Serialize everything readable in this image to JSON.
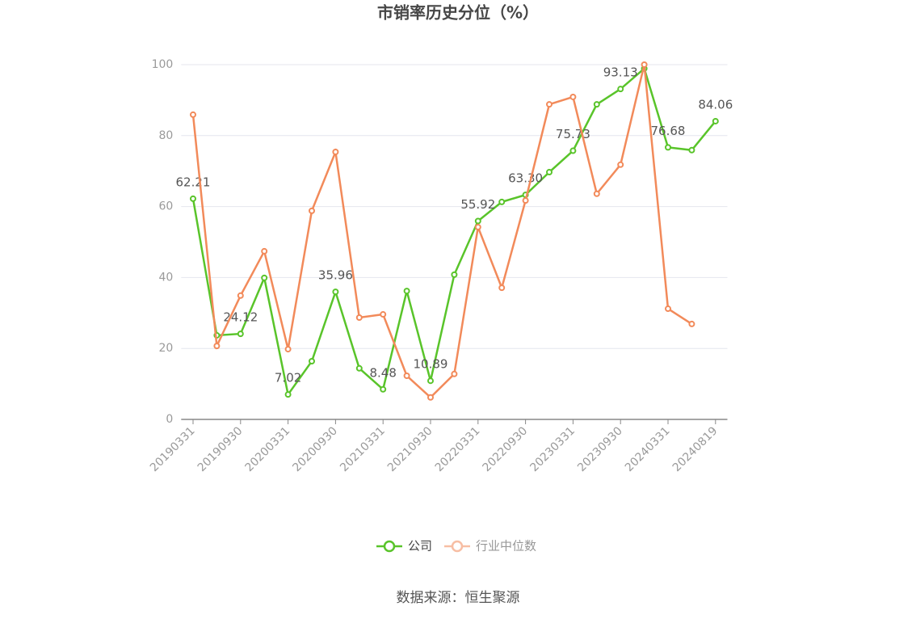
{
  "chart_data": {
    "type": "line",
    "title": "市销率历史分位（%）",
    "source": "数据来源：恒生聚源",
    "categories": [
      "20190331",
      null,
      "20190930",
      null,
      "20200331",
      null,
      "20200930",
      null,
      "20210331",
      null,
      "20210930",
      null,
      "20220331",
      null,
      "20220930",
      null,
      "20230331",
      null,
      "20230930",
      null,
      "20240331",
      null,
      "20240819"
    ],
    "series": [
      {
        "name": "公司",
        "color": "#59c42a",
        "values": [
          62.21,
          23.7,
          24.12,
          39.9,
          7.02,
          16.4,
          35.96,
          14.4,
          8.48,
          36.2,
          10.89,
          40.8,
          55.92,
          61.3,
          63.3,
          69.7,
          75.73,
          88.8,
          93.13,
          98.9,
          76.68,
          75.9,
          84.06
        ],
        "value_labels": [
          "62.21",
          null,
          "24.12",
          null,
          "7.02",
          null,
          "35.96",
          null,
          "8.48",
          null,
          "10.89",
          null,
          "55.92",
          null,
          "63.30",
          null,
          "75.73",
          null,
          "93.13",
          null,
          "76.68",
          null,
          "84.06"
        ]
      },
      {
        "name": "行业中位数",
        "color": "#f28a5a",
        "values": [
          85.9,
          20.7,
          34.9,
          47.4,
          19.8,
          58.8,
          75.4,
          28.7,
          29.6,
          12.3,
          6.2,
          12.8,
          54.2,
          37.1,
          61.7,
          88.8,
          90.9,
          63.6,
          71.8,
          100,
          31.2,
          26.9,
          null
        ]
      }
    ],
    "ylim": [
      0,
      100
    ],
    "yticks": [
      0,
      20,
      40,
      60,
      80,
      100
    ],
    "grid": true
  }
}
